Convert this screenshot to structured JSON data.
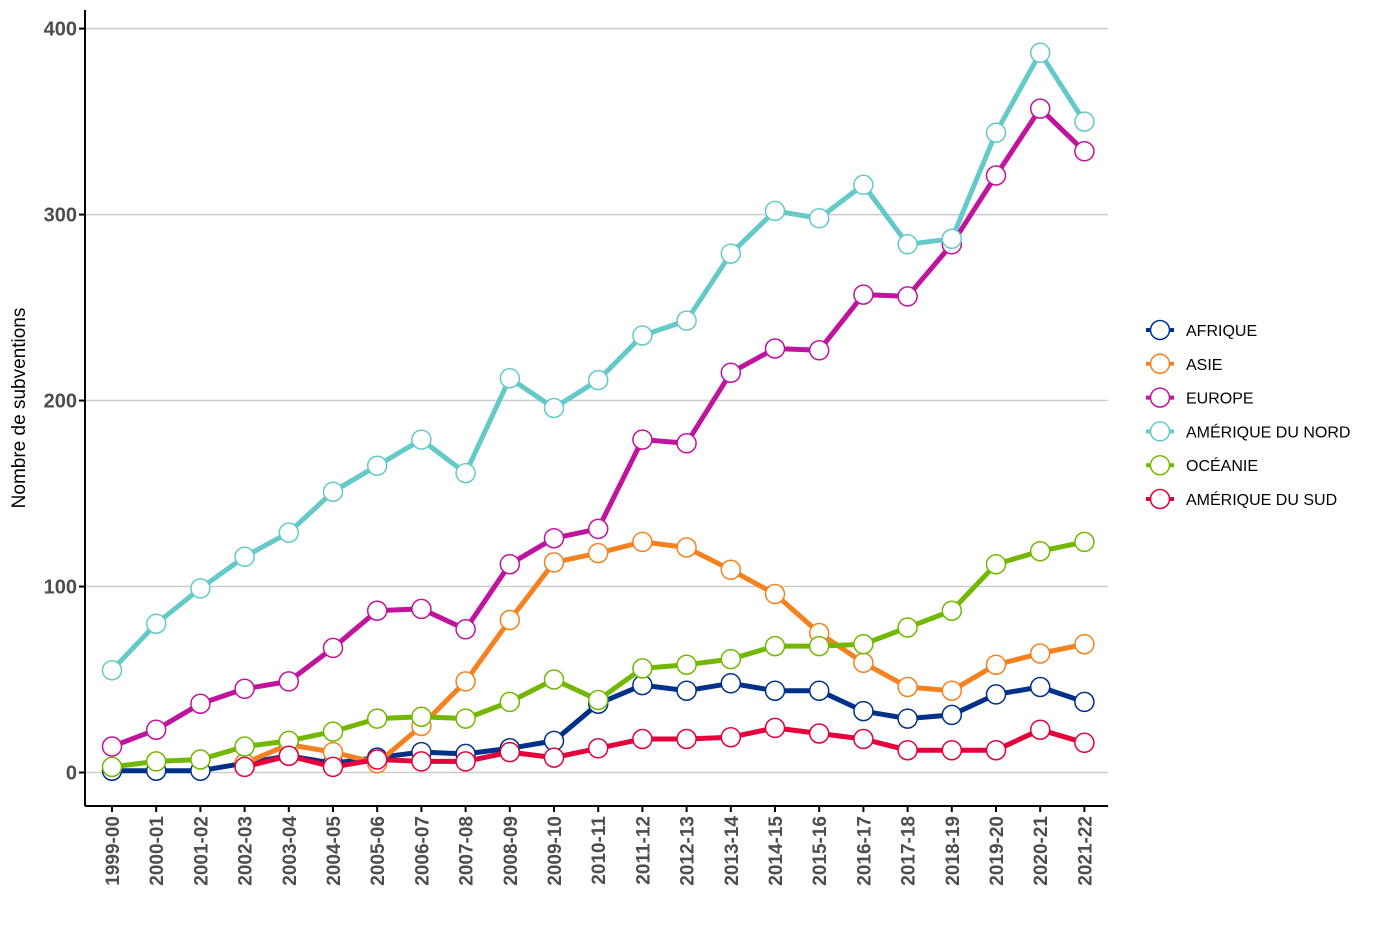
{
  "chart_data": {
    "type": "line",
    "title": "",
    "xlabel": "",
    "ylabel": "Nombre de subventions",
    "ylim": [
      -18,
      410
    ],
    "yticks": [
      0,
      100,
      200,
      300,
      400
    ],
    "grid": "horizontal",
    "legend_position": "right",
    "categories": [
      "1999-00",
      "2000-01",
      "2001-02",
      "2002-03",
      "2003-04",
      "2004-05",
      "2005-06",
      "2006-07",
      "2007-08",
      "2008-09",
      "2009-10",
      "2010-11",
      "2011-12",
      "2012-13",
      "2013-14",
      "2014-15",
      "2015-16",
      "2016-17",
      "2017-18",
      "2018-19",
      "2019-20",
      "2020-21",
      "2021-22"
    ],
    "series": [
      {
        "name": "AFRIQUE",
        "color": "#003087",
        "values": [
          1,
          1,
          1,
          5,
          9,
          5,
          8,
          11,
          10,
          13,
          17,
          37,
          47,
          44,
          48,
          44,
          44,
          33,
          29,
          31,
          42,
          46,
          38
        ]
      },
      {
        "name": "ASIE",
        "color": "#f58220",
        "values": [
          null,
          null,
          null,
          5,
          15,
          11,
          5,
          25,
          49,
          82,
          113,
          118,
          124,
          121,
          109,
          96,
          75,
          59,
          46,
          44,
          58,
          64,
          69
        ]
      },
      {
        "name": "EUROPE",
        "color": "#c0139e",
        "values": [
          14,
          23,
          37,
          45,
          49,
          67,
          87,
          88,
          77,
          112,
          126,
          131,
          179,
          177,
          215,
          228,
          227,
          257,
          256,
          284,
          321,
          357,
          334
        ]
      },
      {
        "name": "AMÉRIQUE DU NORD",
        "color": "#63cac9",
        "values": [
          55,
          80,
          99,
          116,
          129,
          151,
          165,
          179,
          161,
          212,
          196,
          211,
          235,
          243,
          279,
          302,
          298,
          316,
          284,
          287,
          344,
          387,
          350
        ]
      },
      {
        "name": "OCÉANIE",
        "color": "#72b800",
        "values": [
          3,
          6,
          7,
          14,
          17,
          22,
          29,
          30,
          29,
          38,
          50,
          39,
          56,
          58,
          61,
          68,
          68,
          69,
          78,
          87,
          112,
          119,
          124
        ]
      },
      {
        "name": "AMÉRIQUE DU SUD",
        "color": "#e4003b",
        "values": [
          null,
          null,
          null,
          3,
          9,
          3,
          7,
          6,
          6,
          11,
          8,
          13,
          18,
          18,
          19,
          24,
          21,
          18,
          12,
          12,
          12,
          23,
          16
        ]
      }
    ]
  }
}
